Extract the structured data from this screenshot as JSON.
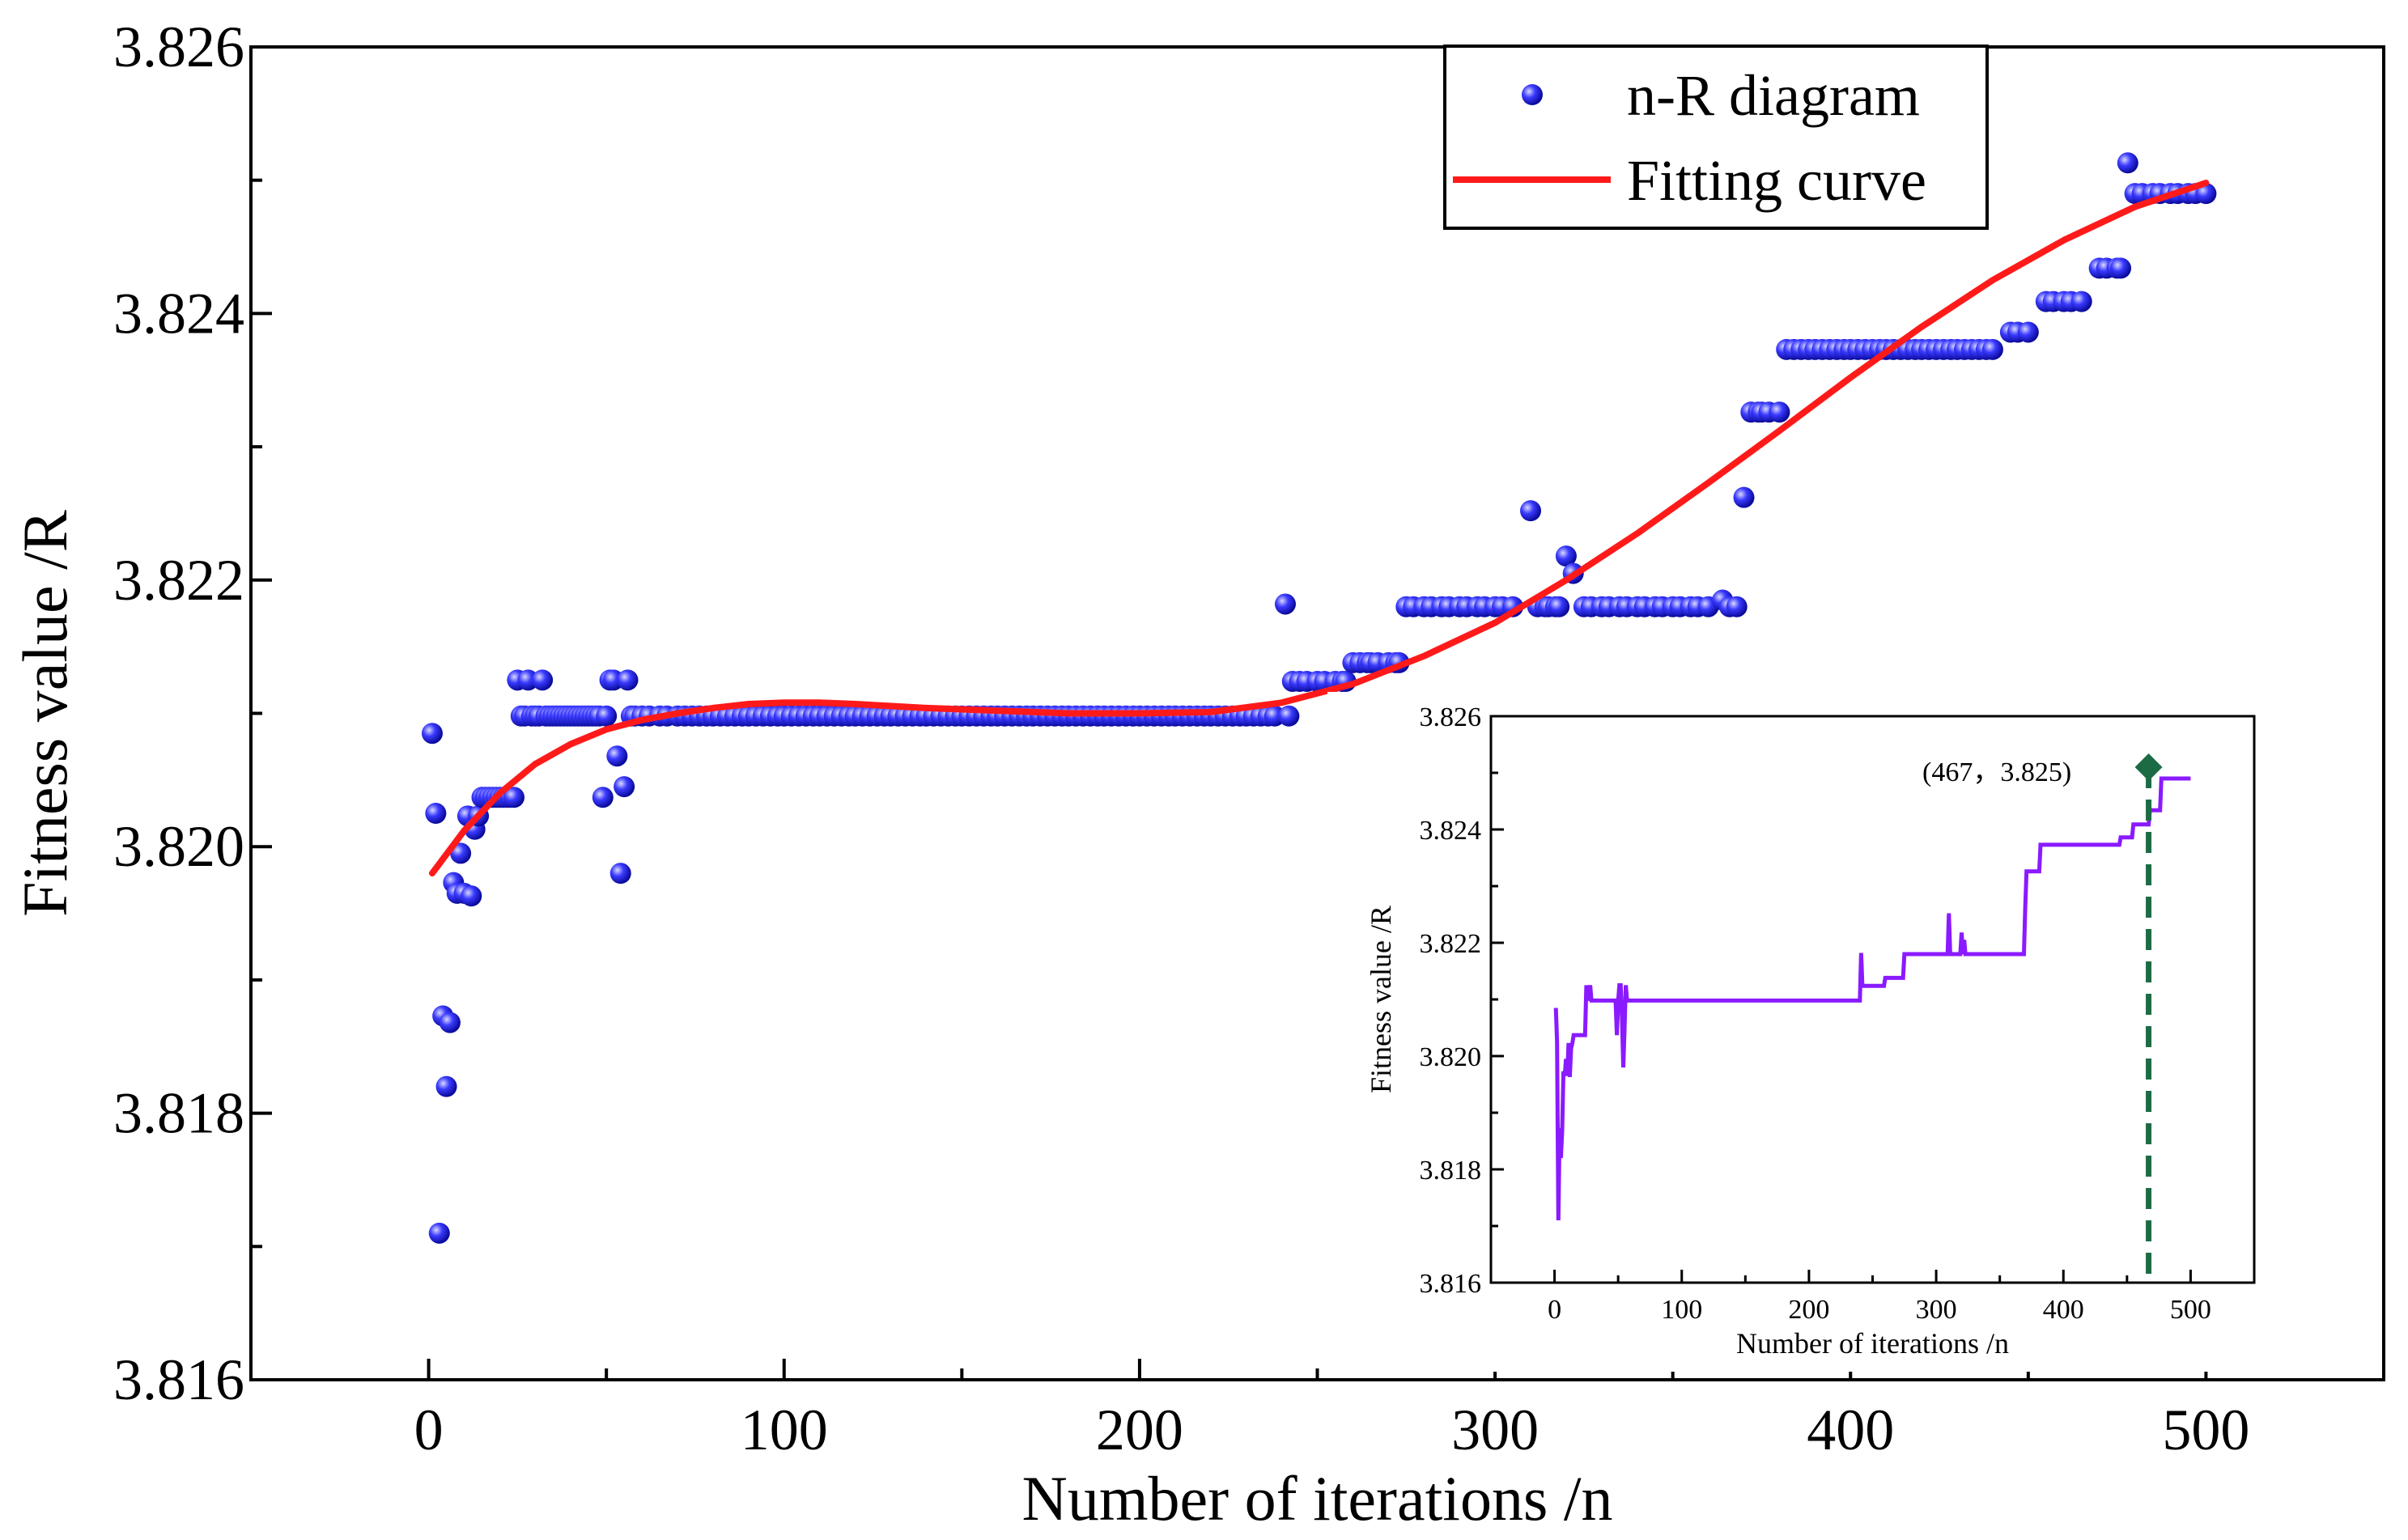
{
  "chart_data": [
    {
      "type": "scatter",
      "title": "",
      "xlabel": "Number of iterations /n",
      "ylabel": "Fitness value /R",
      "xlim": [
        -50,
        550
      ],
      "ylim": [
        3.816,
        3.826
      ],
      "x_ticks": [
        0,
        100,
        200,
        300,
        400,
        500
      ],
      "y_ticks": [
        3.816,
        3.818,
        3.82,
        3.822,
        3.824,
        3.826
      ],
      "x_tick_labels": [
        "0",
        "100",
        "200",
        "300",
        "400",
        "500"
      ],
      "y_tick_labels": [
        "3.816",
        "3.818",
        "3.820",
        "3.822",
        "3.824",
        "3.826"
      ],
      "grid": false,
      "legend_position": "top-right",
      "series": [
        {
          "name": "n-R diagram",
          "kind": "scatter",
          "color": "#2020e0",
          "points": [
            [
              1,
              3.82085
            ],
            [
              2,
              3.82025
            ],
            [
              3,
              3.8171
            ],
            [
              4,
              3.81873
            ],
            [
              5,
              3.8182
            ],
            [
              6,
              3.81868
            ],
            [
              7,
              3.81973
            ],
            [
              8,
              3.81965
            ],
            [
              9,
              3.81995
            ],
            [
              10,
              3.81965
            ],
            [
              11,
              3.82023
            ],
            [
              12,
              3.81963
            ],
            [
              13,
              3.82013
            ],
            [
              14,
              3.82023
            ],
            [
              15,
              3.82037
            ],
            [
              16,
              3.82037
            ],
            [
              17,
              3.82037
            ],
            [
              18,
              3.82037
            ],
            [
              19,
              3.82037
            ],
            [
              20,
              3.82037
            ],
            [
              21,
              3.82037
            ],
            [
              22,
              3.82037
            ],
            [
              23,
              3.82037
            ],
            [
              24,
              3.82037
            ],
            [
              25,
              3.82125
            ],
            [
              26,
              3.82098
            ],
            [
              27,
              3.82098
            ],
            [
              28,
              3.82125
            ],
            [
              29,
              3.82098
            ],
            [
              30,
              3.82098
            ],
            [
              31,
              3.82098
            ],
            [
              32,
              3.82125
            ],
            [
              33,
              3.82098
            ],
            [
              34,
              3.82098
            ],
            [
              35,
              3.82098
            ],
            [
              36,
              3.82098
            ],
            [
              37,
              3.82098
            ],
            [
              38,
              3.82098
            ],
            [
              39,
              3.82098
            ],
            [
              40,
              3.82098
            ],
            [
              41,
              3.82098
            ],
            [
              42,
              3.82098
            ],
            [
              43,
              3.82098
            ],
            [
              44,
              3.82098
            ],
            [
              45,
              3.82098
            ],
            [
              46,
              3.82098
            ],
            [
              47,
              3.82098
            ],
            [
              48,
              3.82098
            ],
            [
              49,
              3.82037
            ],
            [
              50,
              3.82098
            ],
            [
              51,
              3.82125
            ],
            [
              52,
              3.82125
            ],
            [
              53,
              3.82068
            ],
            [
              54,
              3.8198
            ],
            [
              55,
              3.82045
            ],
            [
              56,
              3.82125
            ],
            [
              57,
              3.82098
            ],
            [
              58,
              3.82098
            ],
            [
              60,
              3.82098
            ],
            [
              65,
              3.82098
            ],
            [
              70,
              3.82098
            ],
            [
              80,
              3.82098
            ],
            [
              90,
              3.82098
            ],
            [
              100,
              3.82098
            ],
            [
              110,
              3.82098
            ],
            [
              120,
              3.82098
            ],
            [
              130,
              3.82098
            ],
            [
              140,
              3.82098
            ],
            [
              150,
              3.82098
            ],
            [
              160,
              3.82098
            ],
            [
              170,
              3.82098
            ],
            [
              180,
              3.82098
            ],
            [
              190,
              3.82098
            ],
            [
              200,
              3.82098
            ],
            [
              210,
              3.82098
            ],
            [
              220,
              3.82098
            ],
            [
              230,
              3.82098
            ],
            [
              238,
              3.82098
            ],
            [
              241,
              3.82182
            ],
            [
              242,
              3.82098
            ],
            [
              243,
              3.82124
            ],
            [
              245,
              3.82124
            ],
            [
              250,
              3.82124
            ],
            [
              255,
              3.82124
            ],
            [
              258,
              3.82124
            ],
            [
              260,
              3.82138
            ],
            [
              262,
              3.82138
            ],
            [
              265,
              3.82138
            ],
            [
              270,
              3.82138
            ],
            [
              273,
              3.82138
            ],
            [
              275,
              3.8218
            ],
            [
              280,
              3.8218
            ],
            [
              285,
              3.8218
            ],
            [
              290,
              3.8218
            ],
            [
              295,
              3.8218
            ],
            [
              300,
              3.8218
            ],
            [
              305,
              3.8218
            ],
            [
              310,
              3.82252
            ],
            [
              312,
              3.8218
            ],
            [
              315,
              3.8218
            ],
            [
              318,
              3.8218
            ],
            [
              320,
              3.82218
            ],
            [
              322,
              3.82205
            ],
            [
              325,
              3.8218
            ],
            [
              330,
              3.8218
            ],
            [
              335,
              3.8218
            ],
            [
              340,
              3.8218
            ],
            [
              345,
              3.8218
            ],
            [
              350,
              3.8218
            ],
            [
              355,
              3.8218
            ],
            [
              360,
              3.8218
            ],
            [
              364,
              3.82185
            ],
            [
              366,
              3.8218
            ],
            [
              368,
              3.8218
            ],
            [
              370,
              3.82262
            ],
            [
              372,
              3.82326
            ],
            [
              375,
              3.82326
            ],
            [
              380,
              3.82326
            ],
            [
              382,
              3.82373
            ],
            [
              390,
              3.82373
            ],
            [
              400,
              3.82373
            ],
            [
              410,
              3.82373
            ],
            [
              420,
              3.82373
            ],
            [
              430,
              3.82373
            ],
            [
              440,
              3.82373
            ],
            [
              445,
              3.82386
            ],
            [
              450,
              3.82386
            ],
            [
              455,
              3.82409
            ],
            [
              460,
              3.82409
            ],
            [
              465,
              3.82409
            ],
            [
              470,
              3.82434
            ],
            [
              475,
              3.82434
            ],
            [
              476,
              3.82434
            ],
            [
              478,
              3.82513
            ],
            [
              480,
              3.8249
            ],
            [
              485,
              3.8249
            ],
            [
              490,
              3.8249
            ],
            [
              495,
              3.8249
            ],
            [
              500,
              3.8249
            ]
          ]
        },
        {
          "name": "Fitting curve",
          "kind": "line",
          "color": "#ff1a1a",
          "points": [
            [
              1,
              3.8198
            ],
            [
              10,
              3.82012
            ],
            [
              20,
              3.8204
            ],
            [
              30,
              3.82062
            ],
            [
              40,
              3.82077
            ],
            [
              50,
              3.82088
            ],
            [
              60,
              3.82095
            ],
            [
              70,
              3.821
            ],
            [
              80,
              3.82104
            ],
            [
              90,
              3.82107
            ],
            [
              100,
              3.82108
            ],
            [
              110,
              3.82108
            ],
            [
              120,
              3.82107
            ],
            [
              140,
              3.82104
            ],
            [
              160,
              3.82102
            ],
            [
              180,
              3.821
            ],
            [
              200,
              3.821
            ],
            [
              220,
              3.82101
            ],
            [
              240,
              3.82108
            ],
            [
              260,
              3.82122
            ],
            [
              280,
              3.82143
            ],
            [
              300,
              3.82168
            ],
            [
              320,
              3.822
            ],
            [
              340,
              3.82235
            ],
            [
              360,
              3.82273
            ],
            [
              380,
              3.82312
            ],
            [
              400,
              3.82352
            ],
            [
              420,
              3.8239
            ],
            [
              440,
              3.82425
            ],
            [
              460,
              3.82455
            ],
            [
              480,
              3.8248
            ],
            [
              500,
              3.82498
            ]
          ]
        }
      ]
    },
    {
      "type": "line",
      "title": "",
      "xlabel": "Number of iterations /n",
      "ylabel": "Fitness value /R",
      "xlim": [
        -50,
        550
      ],
      "ylim": [
        3.816,
        3.826
      ],
      "x_ticks": [
        0,
        100,
        200,
        300,
        400,
        500
      ],
      "y_ticks": [
        3.816,
        3.818,
        3.82,
        3.822,
        3.824,
        3.826
      ],
      "x_tick_labels": [
        "0",
        "100",
        "200",
        "300",
        "400",
        "500"
      ],
      "y_tick_labels": [
        "3.816",
        "3.818",
        "3.820",
        "3.822",
        "3.824",
        "3.826"
      ],
      "grid": false,
      "series": [
        {
          "kind": "line",
          "color": "#8a1aff",
          "points": [
            [
              1,
              3.82085
            ],
            [
              2,
              3.82025
            ],
            [
              3,
              3.8171
            ],
            [
              4,
              3.81873
            ],
            [
              5,
              3.8182
            ],
            [
              6,
              3.81868
            ],
            [
              7,
              3.81973
            ],
            [
              8,
              3.81965
            ],
            [
              9,
              3.81995
            ],
            [
              10,
              3.81965
            ],
            [
              11,
              3.82023
            ],
            [
              12,
              3.81963
            ],
            [
              13,
              3.82013
            ],
            [
              14,
              3.82023
            ],
            [
              15,
              3.82037
            ],
            [
              24,
              3.82037
            ],
            [
              25,
              3.82125
            ],
            [
              26,
              3.82098
            ],
            [
              28,
              3.82125
            ],
            [
              29,
              3.82098
            ],
            [
              48,
              3.82098
            ],
            [
              49,
              3.82037
            ],
            [
              50,
              3.82098
            ],
            [
              51,
              3.82125
            ],
            [
              52,
              3.82125
            ],
            [
              53,
              3.82068
            ],
            [
              54,
              3.8198
            ],
            [
              55,
              3.82045
            ],
            [
              56,
              3.82125
            ],
            [
              57,
              3.82098
            ],
            [
              240,
              3.82098
            ],
            [
              241,
              3.82182
            ],
            [
              242,
              3.82124
            ],
            [
              259,
              3.82124
            ],
            [
              260,
              3.82138
            ],
            [
              274,
              3.82138
            ],
            [
              275,
              3.8218
            ],
            [
              309,
              3.8218
            ],
            [
              310,
              3.82252
            ],
            [
              311,
              3.8218
            ],
            [
              319,
              3.8218
            ],
            [
              320,
              3.82218
            ],
            [
              321,
              3.8218
            ],
            [
              322,
              3.82205
            ],
            [
              323,
              3.8218
            ],
            [
              369,
              3.8218
            ],
            [
              370,
              3.82262
            ],
            [
              371,
              3.82326
            ],
            [
              381,
              3.82326
            ],
            [
              382,
              3.82373
            ],
            [
              444,
              3.82373
            ],
            [
              445,
              3.82386
            ],
            [
              454,
              3.82386
            ],
            [
              455,
              3.82409
            ],
            [
              467,
              3.82409
            ],
            [
              468,
              3.82434
            ],
            [
              476,
              3.82434
            ],
            [
              477,
              3.8249
            ],
            [
              500,
              3.8249
            ]
          ]
        }
      ],
      "marker": {
        "x": 467,
        "y": 3.8251,
        "color": "#1d6b45"
      },
      "dashed_guide_color": "#1d6b45",
      "annotation": "(467，3.825)"
    }
  ]
}
